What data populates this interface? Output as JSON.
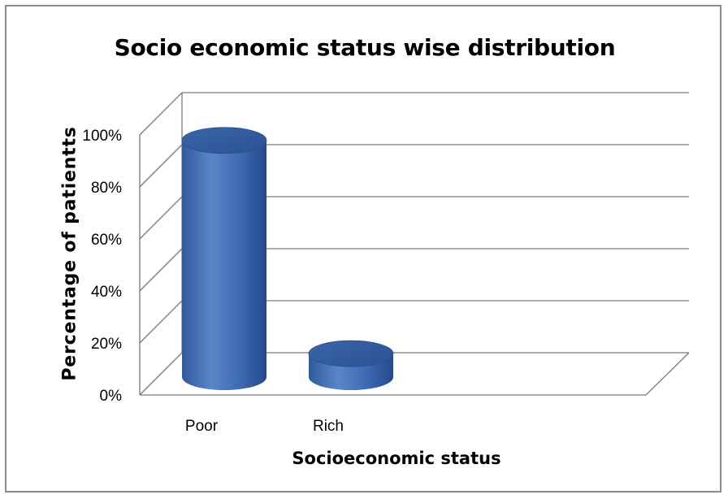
{
  "chart_data": {
    "type": "bar",
    "style": "3d-cylinder",
    "title": "Socio economic status wise distribution",
    "xlabel": "Socioeconomic status",
    "ylabel": "Percentage of patientts",
    "categories": [
      "Poor",
      "Rich"
    ],
    "series": [
      {
        "values": [
          91,
          9
        ]
      }
    ],
    "ylim": [
      0,
      100
    ],
    "yticks": [
      "0%",
      "20%",
      "40%",
      "60%",
      "80%",
      "100%"
    ],
    "grid": true,
    "legend": "none",
    "bar_color": "#3a68b0",
    "bar_top_color": "#2f5a9c"
  }
}
